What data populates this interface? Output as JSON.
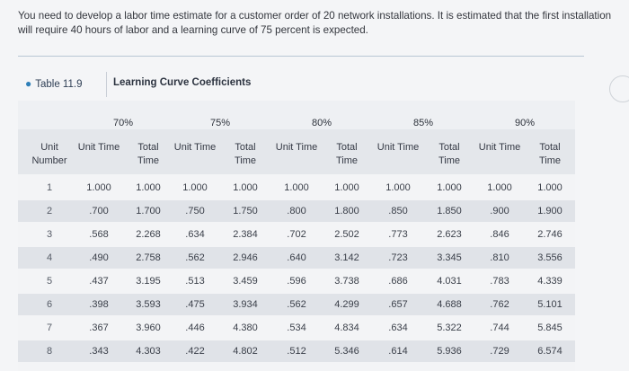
{
  "question": "You need to develop a labor time estimate for a customer order of 20 network installations. It is estimated that the first installation will require 40 hours of labor and a learning curve of 75 percent is expected.",
  "table": {
    "tag": "Table 11.9",
    "title": "Learning Curve Coefficients",
    "unit_number_header": "Unit Number",
    "unit_time_header": "Unit Time",
    "total_time_header": "Total Time",
    "groups": [
      "70%",
      "75%",
      "80%",
      "85%",
      "90%"
    ],
    "rows": [
      {
        "unit": "1",
        "values": [
          "1.000",
          "1.000",
          "1.000",
          "1.000",
          "1.000",
          "1.000",
          "1.000",
          "1.000",
          "1.000",
          "1.000"
        ]
      },
      {
        "unit": "2",
        "values": [
          ".700",
          "1.700",
          ".750",
          "1.750",
          ".800",
          "1.800",
          ".850",
          "1.850",
          ".900",
          "1.900"
        ]
      },
      {
        "unit": "3",
        "values": [
          ".568",
          "2.268",
          ".634",
          "2.384",
          ".702",
          "2.502",
          ".773",
          "2.623",
          ".846",
          "2.746"
        ]
      },
      {
        "unit": "4",
        "values": [
          ".490",
          "2.758",
          ".562",
          "2.946",
          ".640",
          "3.142",
          ".723",
          "3.345",
          ".810",
          "3.556"
        ]
      },
      {
        "unit": "5",
        "values": [
          ".437",
          "3.195",
          ".513",
          "3.459",
          ".596",
          "3.738",
          ".686",
          "4.031",
          ".783",
          "4.339"
        ]
      },
      {
        "unit": "6",
        "values": [
          ".398",
          "3.593",
          ".475",
          "3.934",
          ".562",
          "4.299",
          ".657",
          "4.688",
          ".762",
          "5.101"
        ]
      },
      {
        "unit": "7",
        "values": [
          ".367",
          "3.960",
          ".446",
          "4.380",
          ".534",
          "4.834",
          ".634",
          "5.322",
          ".744",
          "5.845"
        ]
      },
      {
        "unit": "8",
        "values": [
          ".343",
          "4.303",
          ".422",
          "4.802",
          ".512",
          "5.346",
          ".614",
          "5.936",
          ".729",
          "6.574"
        ]
      }
    ]
  }
}
